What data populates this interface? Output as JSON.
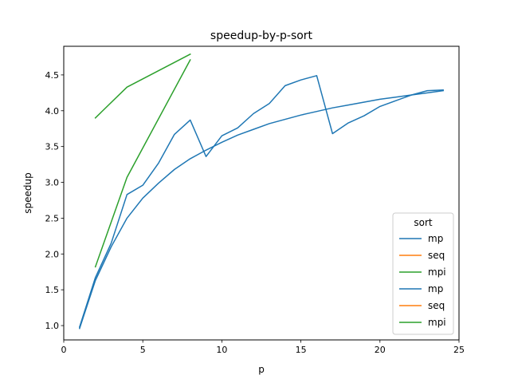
{
  "chart_data": {
    "type": "line",
    "title": "speedup-by-p-sort",
    "xlabel": "p",
    "ylabel": "speedup",
    "xlim": [
      0,
      25
    ],
    "ylim": [
      0.8,
      4.9
    ],
    "xticks": [
      0,
      5,
      10,
      15,
      20,
      25
    ],
    "yticks": [
      1.0,
      1.5,
      2.0,
      2.5,
      3.0,
      3.5,
      4.0,
      4.5
    ],
    "grid": false,
    "legend": {
      "title": "sort",
      "placement": "lower-right",
      "entries": [
        {
          "label": "mp",
          "color": "#1f77b4"
        },
        {
          "label": "seq",
          "color": "#ff7f0e"
        },
        {
          "label": "mpi",
          "color": "#2ca02c"
        },
        {
          "label": "mp",
          "color": "#1f77b4"
        },
        {
          "label": "seq",
          "color": "#ff7f0e"
        },
        {
          "label": "mpi",
          "color": "#2ca02c"
        }
      ]
    },
    "series": [
      {
        "color": "#1f77b4",
        "x": [
          1,
          2,
          3,
          4,
          5,
          6,
          7,
          8,
          9,
          10,
          11,
          12,
          13,
          14,
          15,
          16,
          17,
          18,
          19,
          20,
          21,
          22,
          23,
          24
        ],
        "y": [
          0.98,
          1.67,
          2.15,
          2.83,
          2.96,
          3.27,
          3.67,
          3.87,
          3.36,
          3.65,
          3.76,
          3.96,
          4.1,
          4.35,
          4.43,
          4.49,
          3.68,
          3.83,
          3.93,
          4.06,
          4.14,
          4.22,
          4.28,
          4.29
        ]
      },
      {
        "color": "#1f77b4",
        "x": [
          1,
          2,
          3,
          4,
          5,
          6,
          7,
          8,
          9,
          10,
          11,
          12,
          13,
          14,
          15,
          16,
          17,
          18,
          19,
          20,
          21,
          22,
          23,
          24
        ],
        "y": [
          0.96,
          1.63,
          2.1,
          2.5,
          2.78,
          2.99,
          3.18,
          3.33,
          3.45,
          3.56,
          3.66,
          3.74,
          3.82,
          3.88,
          3.94,
          3.99,
          4.04,
          4.08,
          4.12,
          4.16,
          4.19,
          4.22,
          4.25,
          4.28
        ]
      },
      {
        "color": "#2ca02c",
        "x": [
          2,
          4,
          8
        ],
        "y": [
          3.9,
          4.33,
          4.79
        ]
      },
      {
        "color": "#2ca02c",
        "x": [
          2,
          4,
          8
        ],
        "y": [
          1.82,
          3.07,
          4.71
        ]
      }
    ]
  }
}
